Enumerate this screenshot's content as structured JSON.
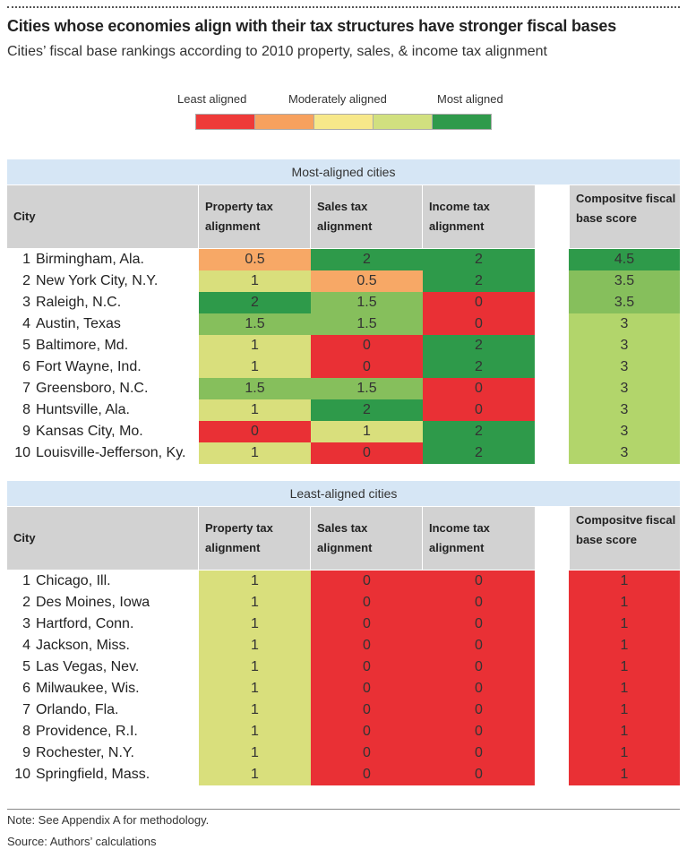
{
  "title": "Cities whose economies align with their tax structures have stronger fiscal bases",
  "subtitle": "Cities’ fiscal base rankings according to 2010 property, sales, & income tax alignment",
  "legend": {
    "labels": [
      "Least aligned",
      "Moderately aligned",
      "Most aligned"
    ],
    "colors": [
      "#ee3a39",
      "#f7a15e",
      "#f7e88a",
      "#d1e07f",
      "#2f9a4b"
    ]
  },
  "color_scale": {
    "alignment": {
      "0": "#e93035",
      "0.5": "#f7a866",
      "1": "#d9df7c",
      "1.5": "#86bf5c",
      "2": "#2e9a4a"
    },
    "composite": {
      "1": "#e93035",
      "3": "#b2d56b",
      "3.5": "#86bf5c",
      "4.5": "#2e9a4a"
    }
  },
  "columns": {
    "city": "City",
    "property": "Property tax alignment",
    "sales": "Sales tax alignment",
    "income": "Income tax alignment",
    "composite": "Compositve fiscal base score"
  },
  "footer": {
    "note": "Note: See Appendix A for methodology.",
    "source": "Source: Authors’ calculations"
  },
  "chart_data": [
    {
      "type": "table",
      "title": "Most-aligned cities",
      "columns": [
        "City",
        "Property tax alignment",
        "Sales tax alignment",
        "Income tax alignment",
        "Compositve fiscal base score"
      ],
      "rows": [
        {
          "rank": "1",
          "city": "Birmingham, Ala.",
          "property": "0.5",
          "sales": "2",
          "income": "2",
          "composite": "4.5"
        },
        {
          "rank": "2",
          "city": "New York City, N.Y.",
          "property": "1",
          "sales": "0.5",
          "income": "2",
          "composite": "3.5"
        },
        {
          "rank": "3",
          "city": "Raleigh, N.C.",
          "property": "2",
          "sales": "1.5",
          "income": "0",
          "composite": "3.5"
        },
        {
          "rank": "4",
          "city": "Austin, Texas",
          "property": "1.5",
          "sales": "1.5",
          "income": "0",
          "composite": "3"
        },
        {
          "rank": "5",
          "city": "Baltimore, Md.",
          "property": "1",
          "sales": "0",
          "income": "2",
          "composite": "3"
        },
        {
          "rank": "6",
          "city": "Fort Wayne, Ind.",
          "property": "1",
          "sales": "0",
          "income": "2",
          "composite": "3"
        },
        {
          "rank": "7",
          "city": "Greensboro, N.C.",
          "property": "1.5",
          "sales": "1.5",
          "income": "0",
          "composite": "3"
        },
        {
          "rank": "8",
          "city": "Huntsville, Ala.",
          "property": "1",
          "sales": "2",
          "income": "0",
          "composite": "3"
        },
        {
          "rank": "9",
          "city": "Kansas  City, Mo.",
          "property": "0",
          "sales": "1",
          "income": "2",
          "composite": "3"
        },
        {
          "rank": "10",
          "city": "Louisville-Jefferson, Ky.",
          "property": "1",
          "sales": "0",
          "income": "2",
          "composite": "3"
        }
      ]
    },
    {
      "type": "table",
      "title": "Least-aligned cities",
      "columns": [
        "City",
        "Property tax alignment",
        "Sales tax alignment",
        "Income tax alignment",
        "Compositve fiscal base score"
      ],
      "rows": [
        {
          "rank": "1",
          "city": "Chicago, Ill.",
          "property": "1",
          "sales": "0",
          "income": "0",
          "composite": "1"
        },
        {
          "rank": "2",
          "city": "Des Moines, Iowa",
          "property": "1",
          "sales": "0",
          "income": "0",
          "composite": "1"
        },
        {
          "rank": "3",
          "city": "Hartford, Conn.",
          "property": "1",
          "sales": "0",
          "income": "0",
          "composite": "1"
        },
        {
          "rank": "4",
          "city": "Jackson, Miss.",
          "property": "1",
          "sales": "0",
          "income": "0",
          "composite": "1"
        },
        {
          "rank": "5",
          "city": "Las Vegas, Nev.",
          "property": "1",
          "sales": "0",
          "income": "0",
          "composite": "1"
        },
        {
          "rank": "6",
          "city": "Milwaukee, Wis.",
          "property": "1",
          "sales": "0",
          "income": "0",
          "composite": "1"
        },
        {
          "rank": "7",
          "city": "Orlando, Fla.",
          "property": "1",
          "sales": "0",
          "income": "0",
          "composite": "1"
        },
        {
          "rank": "8",
          "city": "Providence, R.I.",
          "property": "1",
          "sales": "0",
          "income": "0",
          "composite": "1"
        },
        {
          "rank": "9",
          "city": "Rochester, N.Y.",
          "property": "1",
          "sales": "0",
          "income": "0",
          "composite": "1"
        },
        {
          "rank": "10",
          "city": "Springfield, Mass.",
          "property": "1",
          "sales": "0",
          "income": "0",
          "composite": "1"
        }
      ]
    }
  ]
}
